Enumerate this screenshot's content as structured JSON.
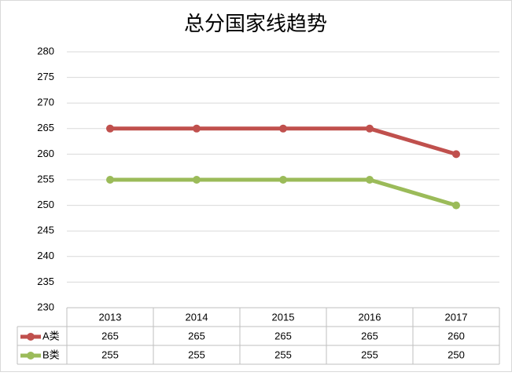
{
  "chart_data": {
    "type": "line",
    "title": "总分国家线趋势",
    "categories": [
      "2013",
      "2014",
      "2015",
      "2016",
      "2017"
    ],
    "series": [
      {
        "name": "A类",
        "color": "#c0504d",
        "values": [
          265,
          265,
          265,
          265,
          260
        ]
      },
      {
        "name": "B类",
        "color": "#9bbb59",
        "values": [
          255,
          255,
          255,
          255,
          250
        ]
      }
    ],
    "ylim": [
      230,
      280
    ],
    "yticks": [
      230,
      235,
      240,
      245,
      250,
      255,
      260,
      265,
      270,
      275,
      280
    ],
    "grid": true
  }
}
